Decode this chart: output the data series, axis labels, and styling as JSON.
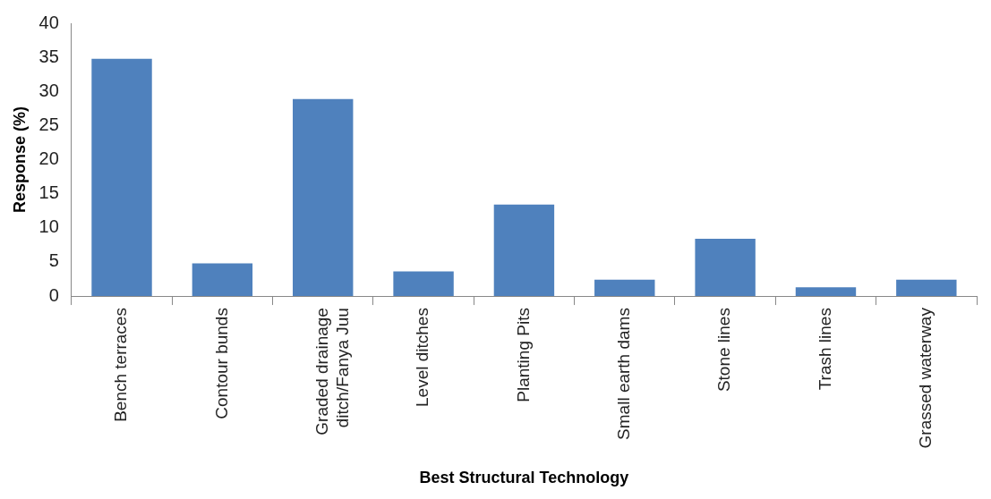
{
  "chart_data": {
    "type": "bar",
    "xlabel": "Best Structural Technology",
    "ylabel": "Response (%)",
    "categories": [
      "Bench terraces",
      "Contour bunds",
      "Graded drainage ditch/Fanya Juu",
      "Level ditches",
      "Planting Pits",
      "Small earth dams",
      "Stone lines",
      "Trash lines",
      "Grassed waterway"
    ],
    "values": [
      34.8,
      4.8,
      28.9,
      3.6,
      13.4,
      2.4,
      8.4,
      1.3,
      2.4
    ],
    "color": "#4f81bd",
    "ylim": [
      0,
      40
    ],
    "yticks": [
      0,
      5,
      10,
      15,
      20,
      25,
      30,
      35,
      40
    ],
    "grid": false,
    "legend": false
  }
}
